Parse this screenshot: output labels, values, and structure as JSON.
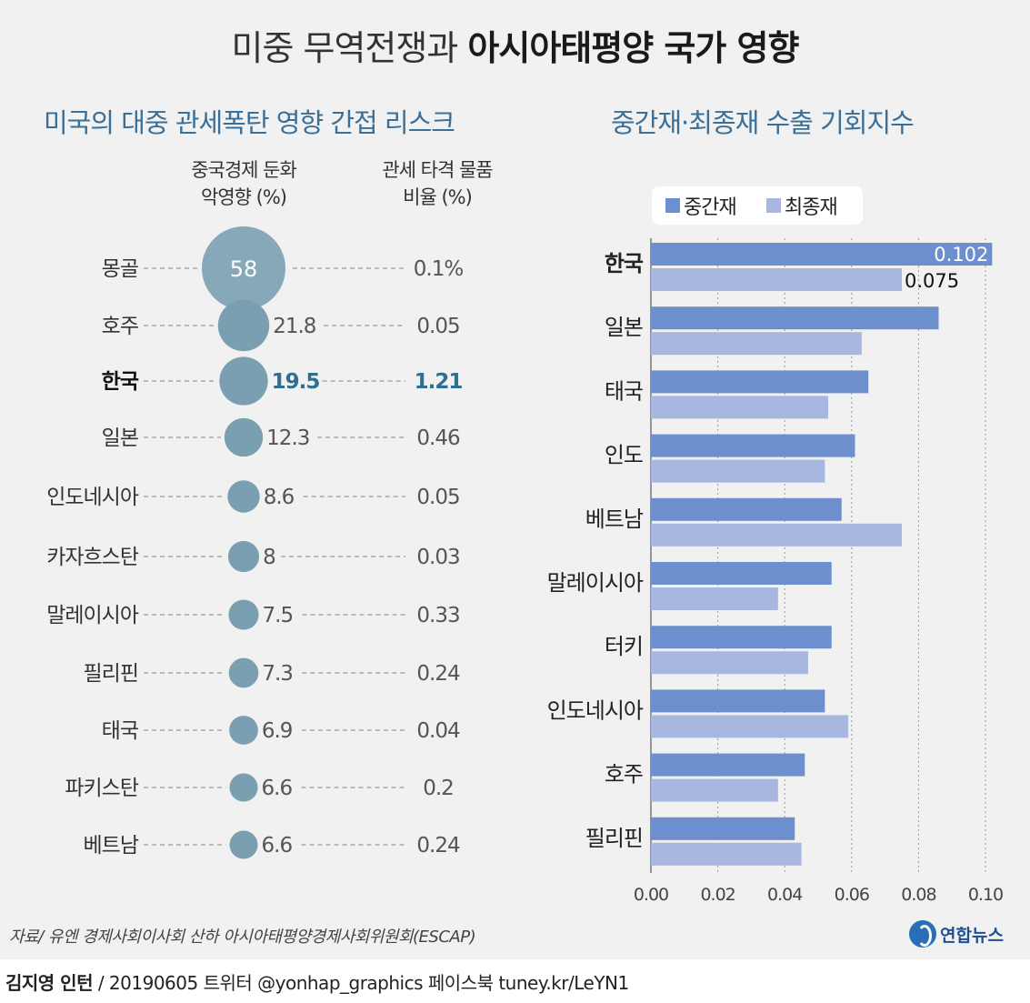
{
  "title": {
    "light": "미중 무역전쟁과 ",
    "bold": "아시아태평양 국가 영향"
  },
  "left_panel": {
    "subtitle": "미국의 대중 관세폭탄 영향 간접 리스크",
    "col1": {
      "line1": "중국경제 둔화",
      "line2": "악영향 (%)"
    },
    "col2": {
      "line1": "관세 타격 물품",
      "line2": "비율 (%)"
    }
  },
  "right_panel": {
    "subtitle": "중간재·최종재 수출 기회지수"
  },
  "colors": {
    "bubble": "#7a9fb0",
    "bubble_big": "#87a8b8",
    "highlight_text": "#2f6f8f",
    "intermediate": "#6d8fce",
    "final": "#a7b7e0",
    "dash": "#9a9a9a"
  },
  "chart_data": [
    {
      "type": "scatter",
      "title": "미국의 대중 관세폭탄 영향 간접 리스크",
      "categories": [
        "몽골",
        "호주",
        "한국",
        "일본",
        "인도네시아",
        "카자흐스탄",
        "말레이시아",
        "필리핀",
        "태국",
        "파키스탄",
        "베트남"
      ],
      "series": [
        {
          "name": "중국경제 둔화 악영향 (%)",
          "values": [
            58,
            21.8,
            19.5,
            12.3,
            8.6,
            8,
            7.5,
            7.3,
            6.9,
            6.6,
            6.6
          ],
          "labels": [
            "58",
            "21.8",
            "19.5",
            "12.3",
            "8.6",
            "8",
            "7.5",
            "7.3",
            "6.9",
            "6.6",
            "6.6"
          ]
        },
        {
          "name": "관세 타격 물품 비율 (%)",
          "values": [
            0.1,
            0.05,
            1.21,
            0.46,
            0.05,
            0.03,
            0.33,
            0.24,
            0.04,
            0.2,
            0.24
          ],
          "labels": [
            "0.1%",
            "0.05",
            "1.21",
            "0.46",
            "0.05",
            "0.03",
            "0.33",
            "0.24",
            "0.04",
            "0.2",
            "0.24"
          ]
        }
      ],
      "highlight": "한국"
    },
    {
      "type": "bar",
      "orientation": "horizontal",
      "title": "중간재·최종재 수출 기회지수",
      "categories": [
        "한국",
        "일본",
        "태국",
        "인도",
        "베트남",
        "말레이시아",
        "터키",
        "인도네시아",
        "호주",
        "필리핀"
      ],
      "series": [
        {
          "name": "중간재",
          "values": [
            0.102,
            0.086,
            0.065,
            0.061,
            0.057,
            0.054,
            0.054,
            0.052,
            0.046,
            0.043
          ]
        },
        {
          "name": "최종재",
          "values": [
            0.075,
            0.063,
            0.053,
            0.052,
            0.075,
            0.038,
            0.047,
            0.059,
            0.038,
            0.045
          ]
        }
      ],
      "data_labels": {
        "중간재": "0.102",
        "최종재": "0.075"
      },
      "xlim": [
        0,
        0.1
      ],
      "xticks": [
        "0.00",
        "0.02",
        "0.04",
        "0.06",
        "0.08",
        "0.10"
      ],
      "grid": true,
      "legend": "top",
      "highlight": "한국"
    }
  ],
  "source": "자료/ 유엔 경제사회이사회 산하 아시아태평양경제사회위원회(ESCAP)",
  "logo": "연합뉴스",
  "footer": {
    "name": "김지영 인턴",
    "rest": " / 20190605 트위터 @yonhap_graphics  페이스북 tuney.kr/LeYN1"
  }
}
